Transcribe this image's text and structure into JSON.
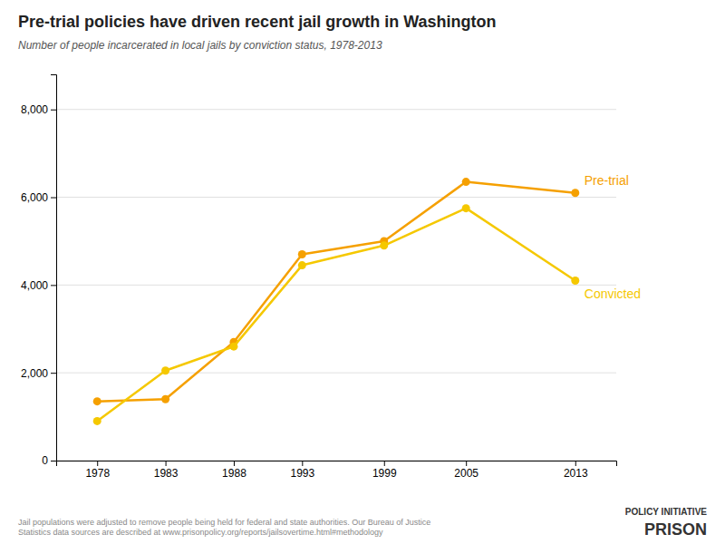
{
  "chart_data": {
    "type": "line",
    "title": "Pre-trial policies have driven recent jail growth in Washington",
    "subtitle": "Number of people incarcerated in local jails by conviction status, 1978-2013",
    "x": [
      1978,
      1983,
      1988,
      1993,
      1999,
      2005,
      2013
    ],
    "series": [
      {
        "name": "Pre-trial",
        "color": "#F5A000",
        "marker": "circle",
        "line_style": "solid",
        "values": [
          1350,
          1400,
          2700,
          4700,
          5000,
          6350,
          6100
        ]
      },
      {
        "name": "Convicted",
        "color": "#F5C800",
        "marker": "circle",
        "line_style": "solid",
        "values": [
          900,
          2050,
          2600,
          4450,
          4900,
          5750,
          4100
        ]
      }
    ],
    "xlim": [
      1975,
      2016
    ],
    "xticks": [
      1978,
      1983,
      1988,
      1993,
      1999,
      2005,
      2013
    ],
    "ylim": [
      0,
      8800
    ],
    "yticks": [
      0,
      {
        "value": 2000,
        "label": "2,000"
      },
      {
        "value": 4000,
        "label": "4,000"
      },
      {
        "value": 6000,
        "label": "6,000"
      },
      {
        "value": 8000,
        "label": "8,000"
      }
    ],
    "grid": true,
    "annotations": [
      "Jail populations were adjusted to remove people being held for federal and state authorities. Our Bureau of Justice\nStatistics data sources are described at www.prisonpolicy.org/reports/jailsovertime.html#methodology",
      "PRISON",
      "POLICY INITIATIVE"
    ]
  }
}
